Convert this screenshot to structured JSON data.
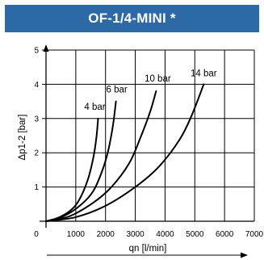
{
  "colors": {
    "title_background": "#2b6aa6",
    "title_text": "#ffffff",
    "grid": "#000000",
    "curves": "#000000"
  },
  "chart_data": {
    "type": "line",
    "title": "OF-1/4-MINI *",
    "xlabel": "qn [l/min]",
    "ylabel": "Δp1-2 [bar]",
    "xlim": [
      0,
      7000
    ],
    "ylim": [
      0,
      5
    ],
    "x_ticks": [
      "0",
      "1000",
      "2000",
      "3000",
      "4000",
      "5000",
      "6000",
      "7000"
    ],
    "y_ticks": [
      "1",
      "2",
      "3",
      "4",
      "5"
    ],
    "grid": true,
    "series": [
      {
        "name": "4 bar",
        "points": [
          [
            0,
            0
          ],
          [
            400,
            0.1
          ],
          [
            800,
            0.3
          ],
          [
            1100,
            0.6
          ],
          [
            1400,
            1.2
          ],
          [
            1600,
            1.9
          ],
          [
            1700,
            2.5
          ],
          [
            1750,
            3.0
          ]
        ]
      },
      {
        "name": "6 bar",
        "points": [
          [
            0,
            0
          ],
          [
            600,
            0.15
          ],
          [
            1200,
            0.5
          ],
          [
            1600,
            0.9
          ],
          [
            1900,
            1.5
          ],
          [
            2100,
            2.1
          ],
          [
            2250,
            2.8
          ],
          [
            2350,
            3.5
          ]
        ]
      },
      {
        "name": "10 bar",
        "points": [
          [
            0,
            0
          ],
          [
            800,
            0.15
          ],
          [
            1600,
            0.55
          ],
          [
            2200,
            1.0
          ],
          [
            2800,
            1.7
          ],
          [
            3200,
            2.5
          ],
          [
            3500,
            3.2
          ],
          [
            3700,
            3.8
          ]
        ]
      },
      {
        "name": "14 bar",
        "points": [
          [
            0,
            0
          ],
          [
            1000,
            0.12
          ],
          [
            2000,
            0.45
          ],
          [
            3000,
            1.0
          ],
          [
            3800,
            1.6
          ],
          [
            4500,
            2.4
          ],
          [
            4900,
            3.1
          ],
          [
            5300,
            4.0
          ]
        ]
      }
    ]
  }
}
